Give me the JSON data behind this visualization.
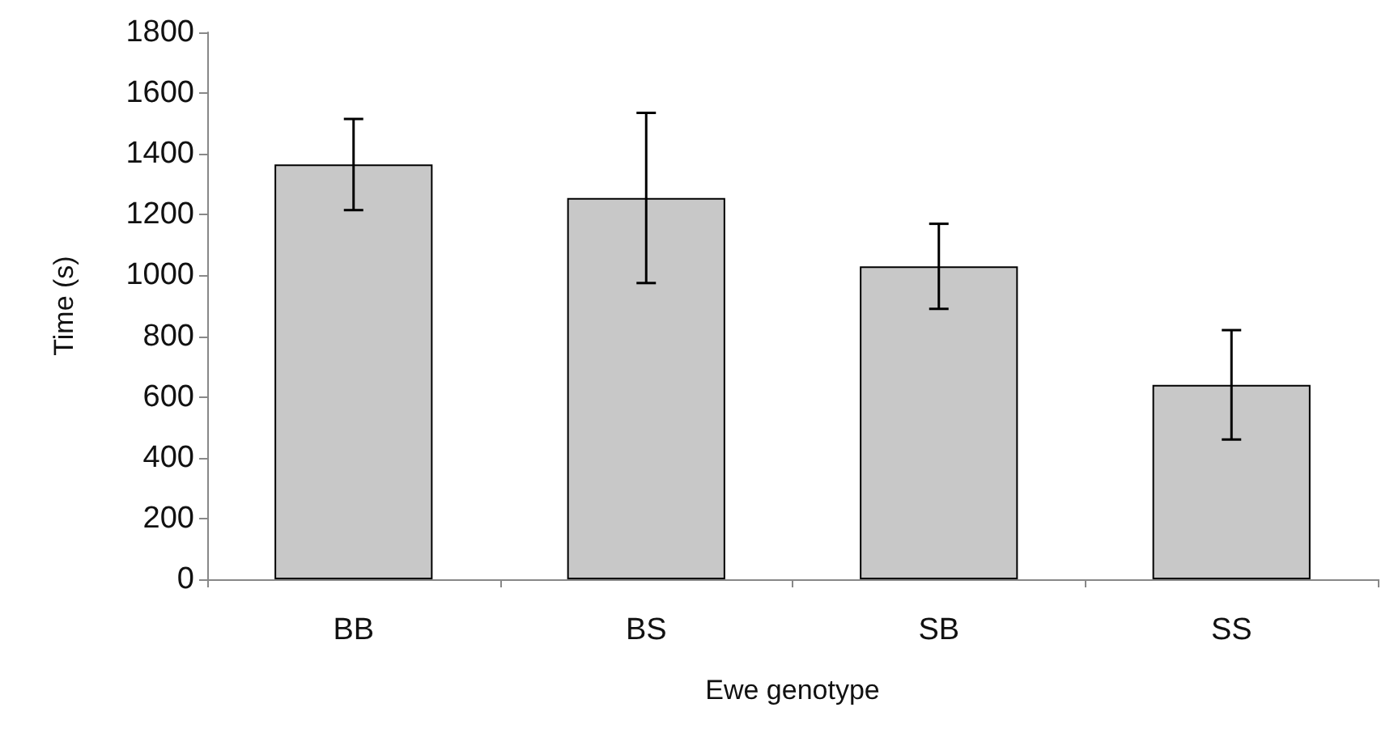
{
  "chart_data": {
    "type": "bar",
    "xlabel": "Ewe genotype",
    "ylabel": "Time (s)",
    "categories": [
      "BB",
      "BS",
      "SB",
      "SS"
    ],
    "values": [
      1365,
      1255,
      1030,
      640
    ],
    "errors": [
      150,
      280,
      140,
      180
    ],
    "color": "#c8c8c8",
    "ylim": [
      0,
      1800
    ],
    "yticks": [
      0,
      200,
      400,
      600,
      800,
      1000,
      1200,
      1400,
      1600,
      1800
    ],
    "grid": false
  }
}
